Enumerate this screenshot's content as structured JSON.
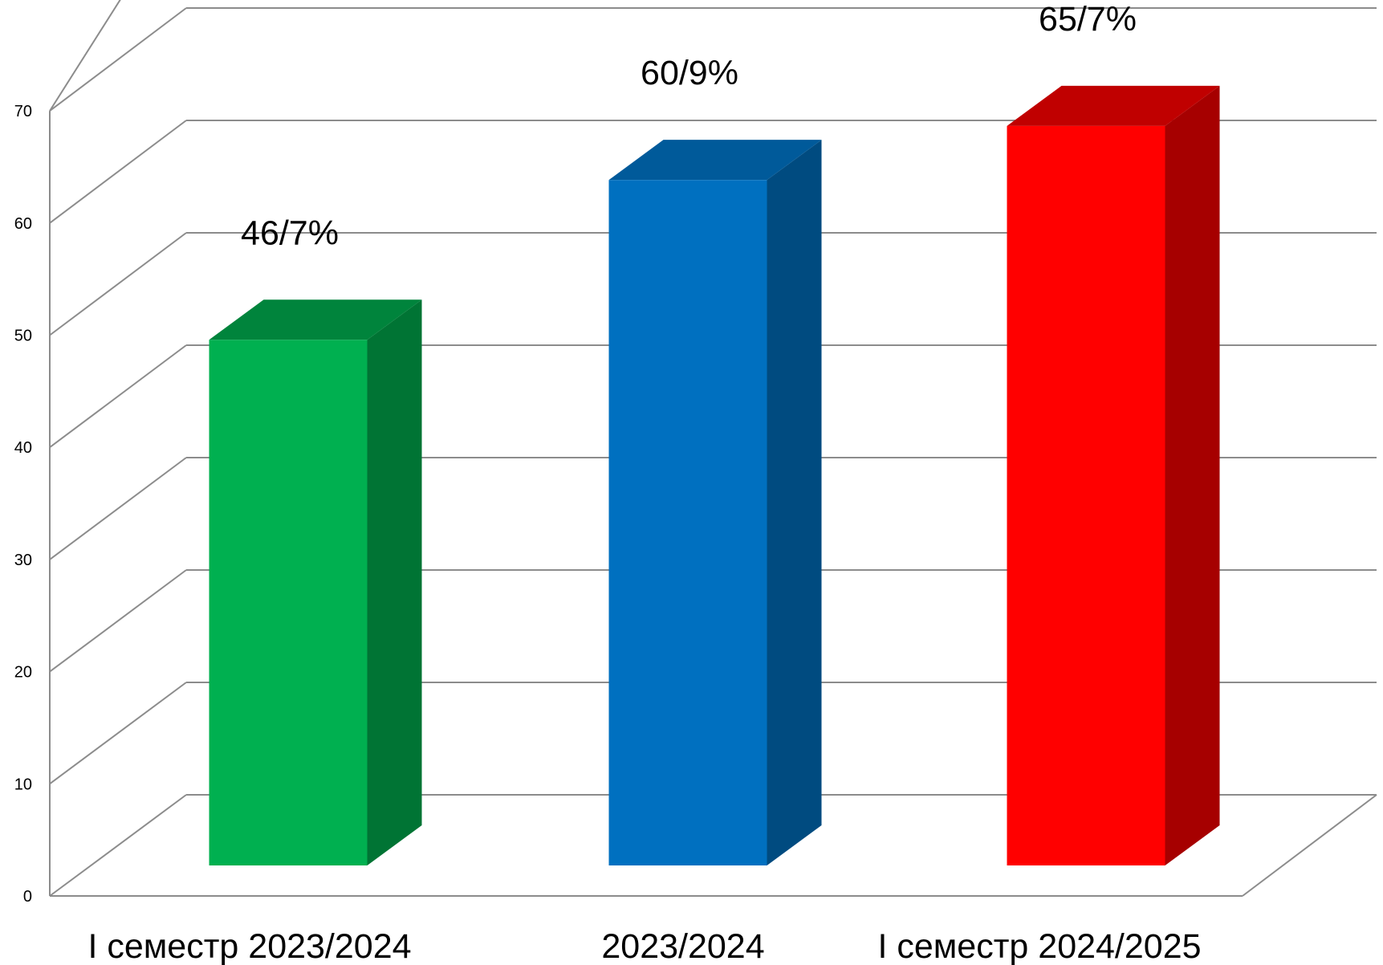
{
  "chart_data": {
    "type": "bar",
    "categories": [
      "І семестр 2023/2024",
      "2023/2024",
      "І семестр 2024/2025"
    ],
    "values": [
      46.7,
      60.9,
      65.7
    ],
    "data_labels": [
      "46/7%",
      "60/9%",
      "65/7%"
    ],
    "bar_colors": {
      "front": [
        "#00b050",
        "#0070c0",
        "#ff0000"
      ],
      "side": [
        "#007434",
        "#004b80",
        "#a60000"
      ],
      "top": [
        "#00843c",
        "#005a9a",
        "#c00000"
      ]
    },
    "yticks": [
      "0",
      "10",
      "20",
      "30",
      "40",
      "50",
      "60",
      "70"
    ],
    "ylim": [
      0,
      70
    ],
    "grid": true,
    "style": "3d-column",
    "title": "",
    "xlabel": "",
    "ylabel": ""
  }
}
